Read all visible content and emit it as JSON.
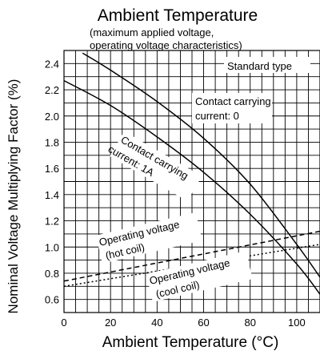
{
  "chart_data": {
    "type": "line",
    "title": "Ambient Temperature",
    "subtitle_lines": [
      "(maximum applied voltage,",
      "operating voltage characteristics)"
    ],
    "xlabel": "Ambient Temperature (°C)",
    "ylabel": "Nominal Voltage Multiplying Factor (%)",
    "xlim": [
      0,
      110
    ],
    "ylim": [
      0.5,
      2.5
    ],
    "x_ticks": [
      0,
      20,
      40,
      60,
      80,
      100
    ],
    "y_ticks": [
      0.6,
      0.8,
      1.0,
      1.2,
      1.4,
      1.6,
      1.8,
      2.0,
      2.2,
      2.4
    ],
    "grid": true,
    "legend_label": "Standard type",
    "series": [
      {
        "label_lines": [
          "Contact carrying",
          "current: 0"
        ],
        "style": "solid",
        "x": [
          8,
          20,
          40,
          60,
          80,
          100,
          110
        ],
        "y": [
          2.48,
          2.35,
          2.11,
          1.83,
          1.48,
          1.02,
          0.77
        ]
      },
      {
        "label_lines": [
          "Contact carrying",
          "current: 1A"
        ],
        "style": "solid",
        "x": [
          0,
          20,
          40,
          60,
          80,
          100,
          110
        ],
        "y": [
          2.27,
          2.08,
          1.84,
          1.57,
          1.25,
          0.87,
          0.64
        ]
      },
      {
        "label_lines": [
          "Operating voltage",
          "(hot coil)"
        ],
        "style": "dashed",
        "x": [
          0,
          110
        ],
        "y": [
          0.74,
          1.12
        ]
      },
      {
        "label_lines": [
          "Operating voltage",
          "(cool coil)"
        ],
        "style": "dotted",
        "x": [
          0,
          110
        ],
        "y": [
          0.7,
          1.02
        ]
      }
    ]
  }
}
